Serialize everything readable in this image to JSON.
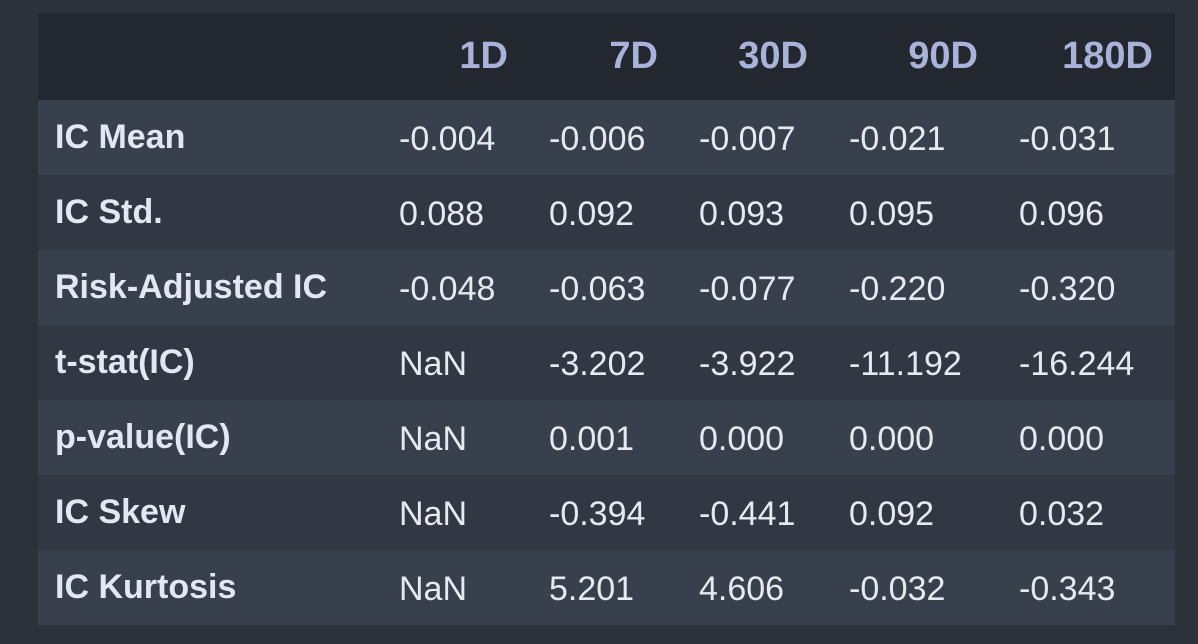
{
  "table": {
    "columns": [
      "",
      "1D",
      "7D",
      "30D",
      "90D",
      "180D"
    ],
    "rows": [
      {
        "label": "IC Mean",
        "values": [
          "-0.004",
          "-0.006",
          "-0.007",
          "-0.021",
          "-0.031"
        ]
      },
      {
        "label": "IC Std.",
        "values": [
          "0.088",
          "0.092",
          "0.093",
          "0.095",
          "0.096"
        ]
      },
      {
        "label": "Risk-Adjusted IC",
        "values": [
          "-0.048",
          "-0.063",
          "-0.077",
          "-0.220",
          "-0.320"
        ]
      },
      {
        "label": "t-stat(IC)",
        "values": [
          "NaN",
          "-3.202",
          "-3.922",
          "-11.192",
          "-16.244"
        ]
      },
      {
        "label": "p-value(IC)",
        "values": [
          "NaN",
          "0.001",
          "0.000",
          "0.000",
          "0.000"
        ]
      },
      {
        "label": "IC Skew",
        "values": [
          "NaN",
          "-0.394",
          "-0.441",
          "0.092",
          "0.032"
        ]
      },
      {
        "label": "IC Kurtosis",
        "values": [
          "NaN",
          "5.201",
          "4.606",
          "-0.032",
          "-0.343"
        ]
      }
    ]
  }
}
